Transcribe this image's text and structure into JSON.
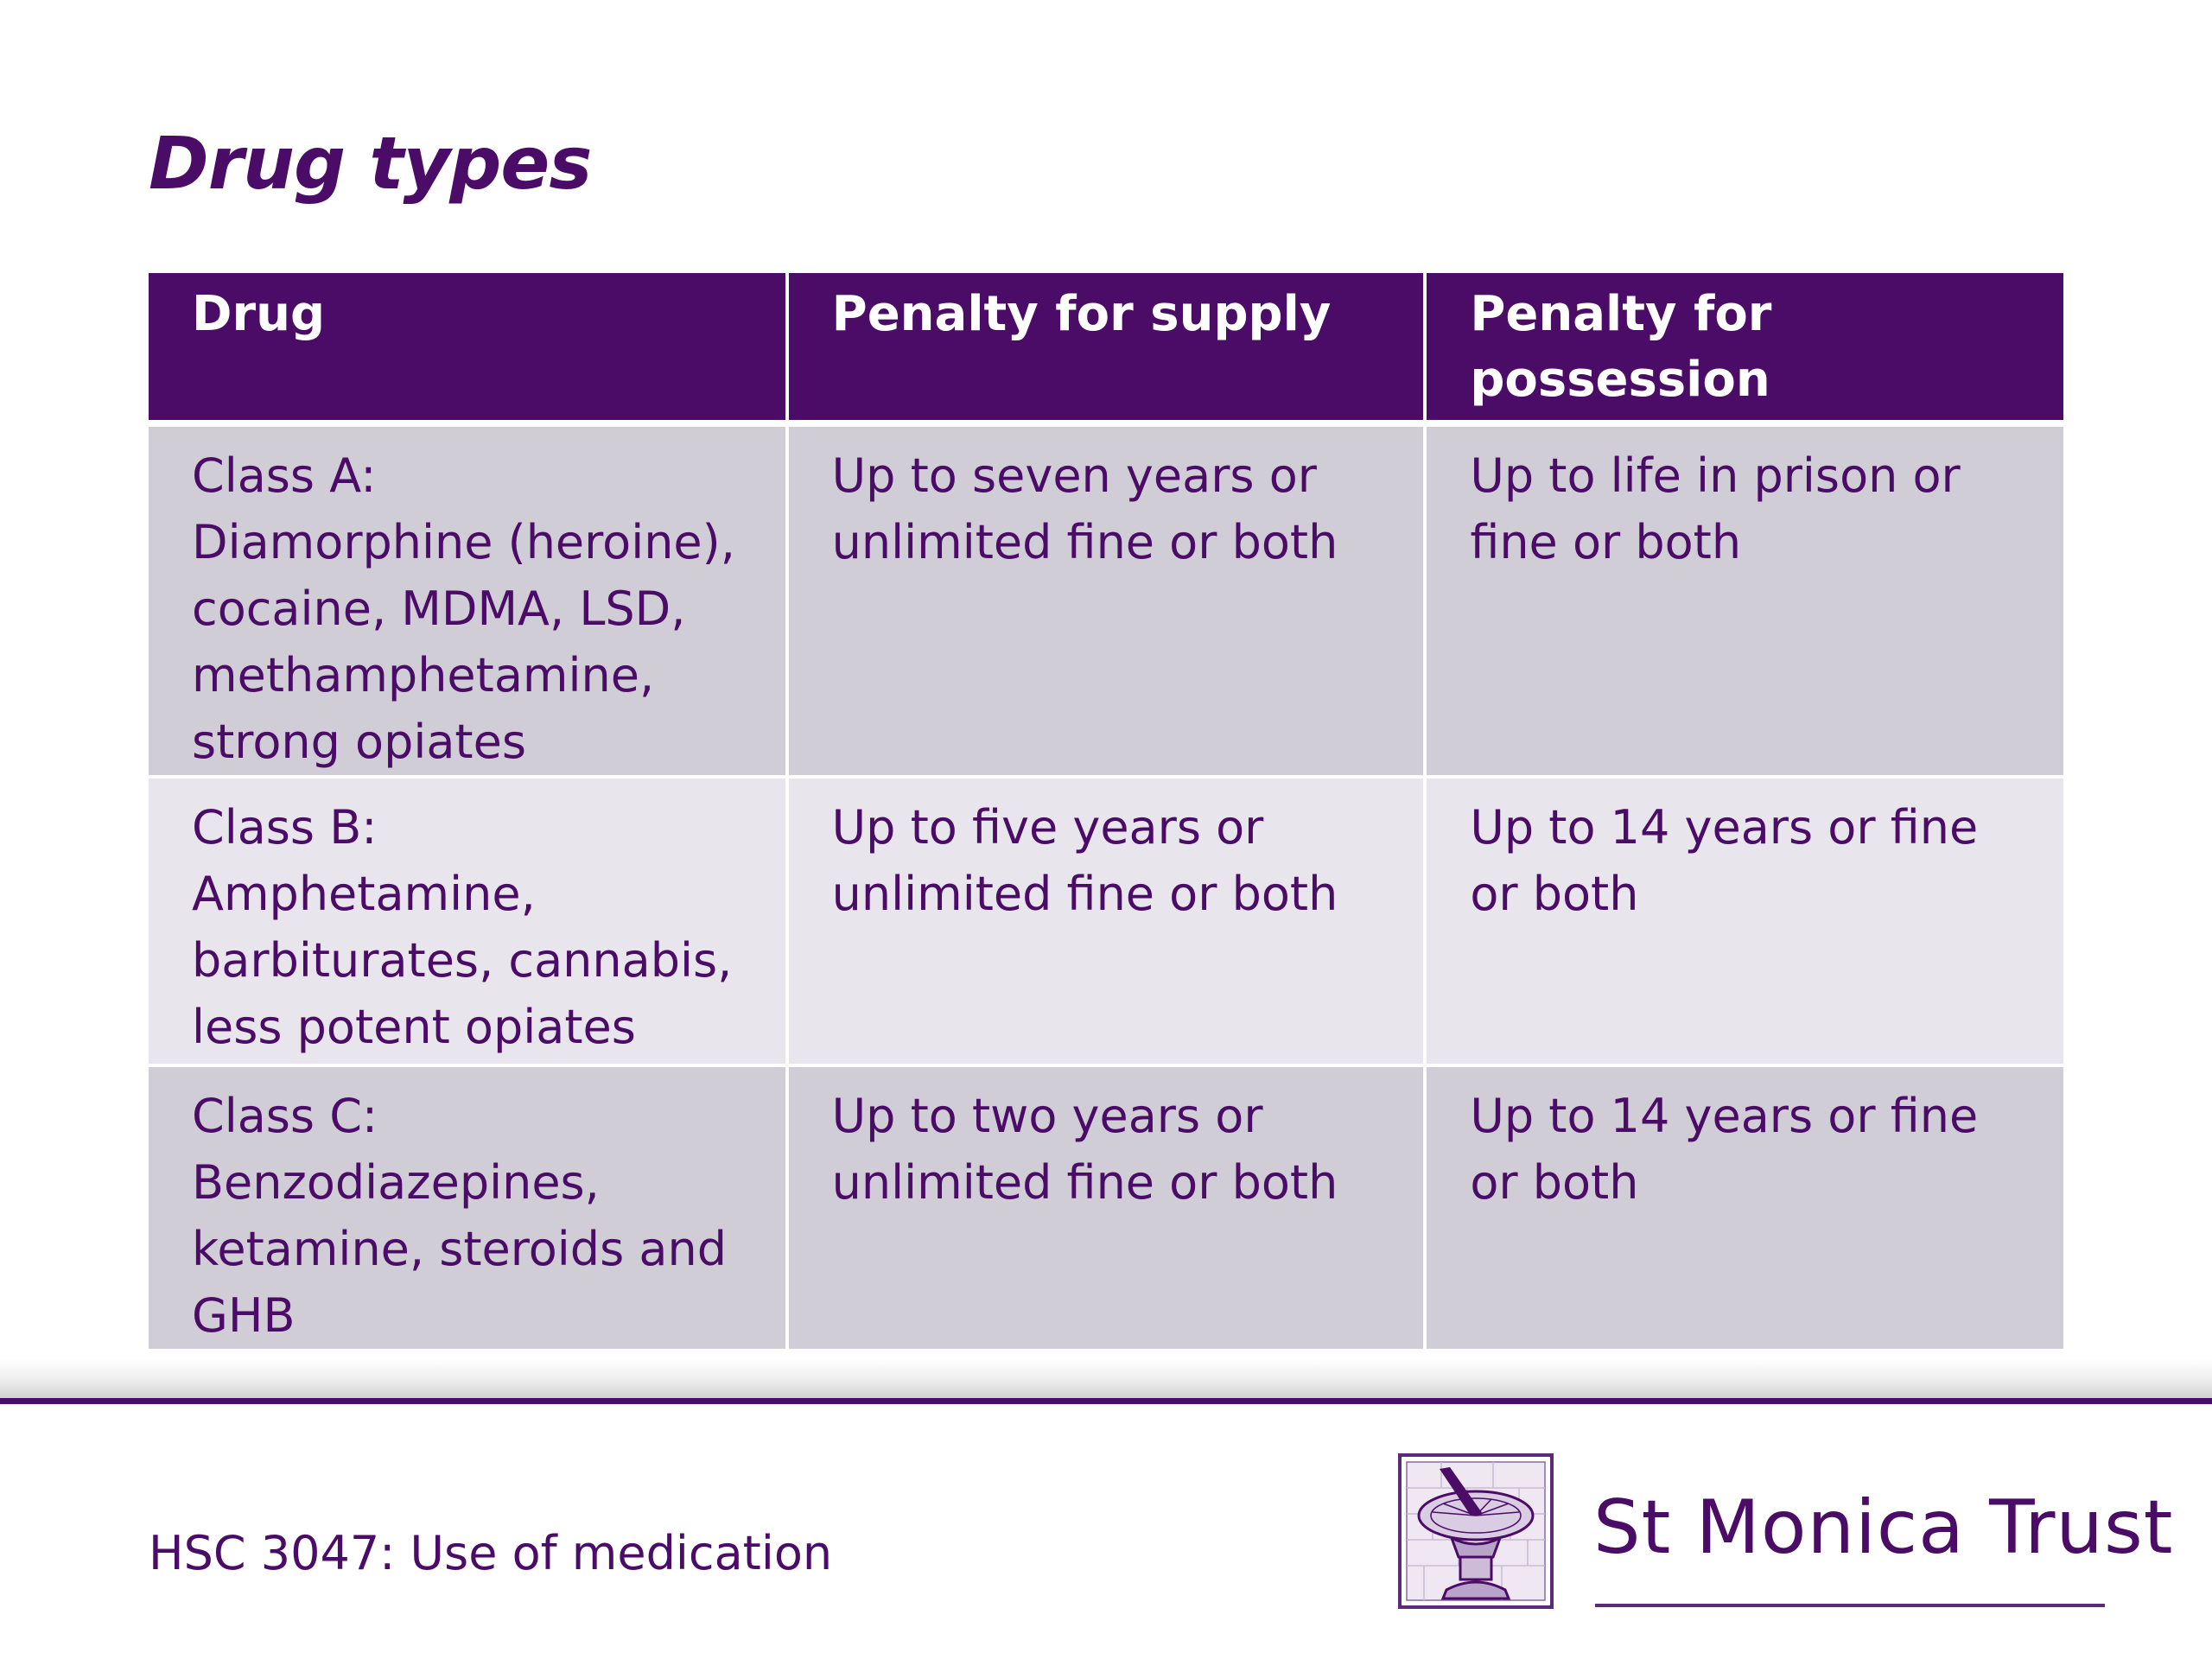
{
  "slide": {
    "title": "Drug types"
  },
  "table": {
    "headers": [
      "Drug",
      "Penalty for supply",
      "Penalty for possession"
    ],
    "header_lines": [
      [
        "Drug"
      ],
      [
        "Penalty for supply"
      ],
      [
        "Penalty for",
        "possession"
      ]
    ],
    "rows": [
      {
        "drug": [
          "Class A:",
          "Diamorphine (heroine),",
          "cocaine, MDMA, LSD,",
          "methamphetamine,",
          "strong opiates"
        ],
        "supply": [
          "Up to seven years or",
          "unlimited fine or both"
        ],
        "possession": [
          "Up to life in prison or",
          "fine or both"
        ]
      },
      {
        "drug": [
          "Class B:",
          "Amphetamine,",
          "barbiturates, cannabis,",
          "less potent opiates"
        ],
        "supply": [
          "Up to five years or",
          "unlimited fine or both"
        ],
        "possession": [
          "Up to 14 years or fine",
          "or both"
        ]
      },
      {
        "drug": [
          "Class C:",
          "Benzodiazepines,",
          "ketamine, steroids and",
          "GHB"
        ],
        "supply": [
          "Up to two years or",
          "unlimited fine or both"
        ],
        "possession": [
          "Up to 14 years or fine",
          "or both"
        ]
      }
    ]
  },
  "footer": {
    "course": "HSC 3047: Use of medication",
    "brand": "St Monica Trust",
    "logo_icon": "sundial-crest-icon"
  },
  "colors": {
    "brand_purple": "#4a0c66",
    "row_dark": "#d0cdd6",
    "row_light": "#e8e6ec"
  }
}
